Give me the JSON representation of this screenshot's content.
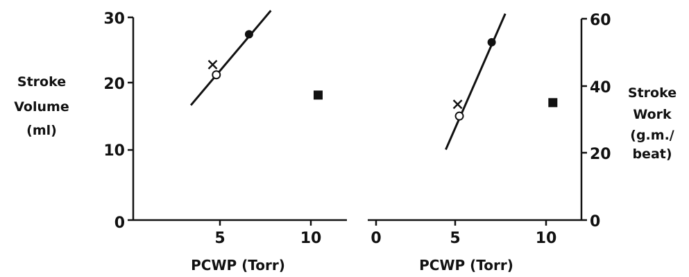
{
  "chart_data": [
    {
      "type": "scatter",
      "title": "",
      "xlabel": "PCWP (Torr)",
      "ylabel_lines": [
        "Stroke",
        "Volume",
        "(ml)"
      ],
      "xlim": [
        0,
        12
      ],
      "ylim": [
        0,
        30
      ],
      "xticks": [
        "5",
        "10"
      ],
      "yticks": [
        "0",
        "10",
        "20",
        "30"
      ],
      "yaxis_side": "left",
      "points": [
        {
          "marker": "x",
          "x": 4.6,
          "y": 23.0
        },
        {
          "marker": "open-circle",
          "x": 4.8,
          "y": 21.5
        },
        {
          "marker": "filled-circle",
          "x": 6.6,
          "y": 27.5
        },
        {
          "marker": "filled-square",
          "x": 10.4,
          "y": 18.5
        }
      ],
      "fit_line": {
        "x": [
          3.4,
          7.8
        ],
        "y": [
          17.0,
          31.0
        ]
      }
    },
    {
      "type": "scatter",
      "title": "",
      "xlabel": "PCWP (Torr)",
      "ylabel_lines": [
        "Stroke",
        "Work",
        "(g.m./",
        "beat)"
      ],
      "xlim": [
        0,
        12
      ],
      "ylim": [
        0,
        60
      ],
      "xticks": [
        "0",
        "5",
        "10"
      ],
      "yticks": [
        "0",
        "20",
        "40",
        "60"
      ],
      "yaxis_side": "right",
      "points": [
        {
          "marker": "x",
          "x": 4.8,
          "y": 34.5
        },
        {
          "marker": "open-circle",
          "x": 4.9,
          "y": 31.0
        },
        {
          "marker": "filled-circle",
          "x": 6.8,
          "y": 53.0
        },
        {
          "marker": "filled-square",
          "x": 10.4,
          "y": 35.0
        }
      ],
      "fit_line": {
        "x": [
          4.1,
          7.6
        ],
        "y": [
          21.0,
          61.5
        ]
      }
    }
  ]
}
